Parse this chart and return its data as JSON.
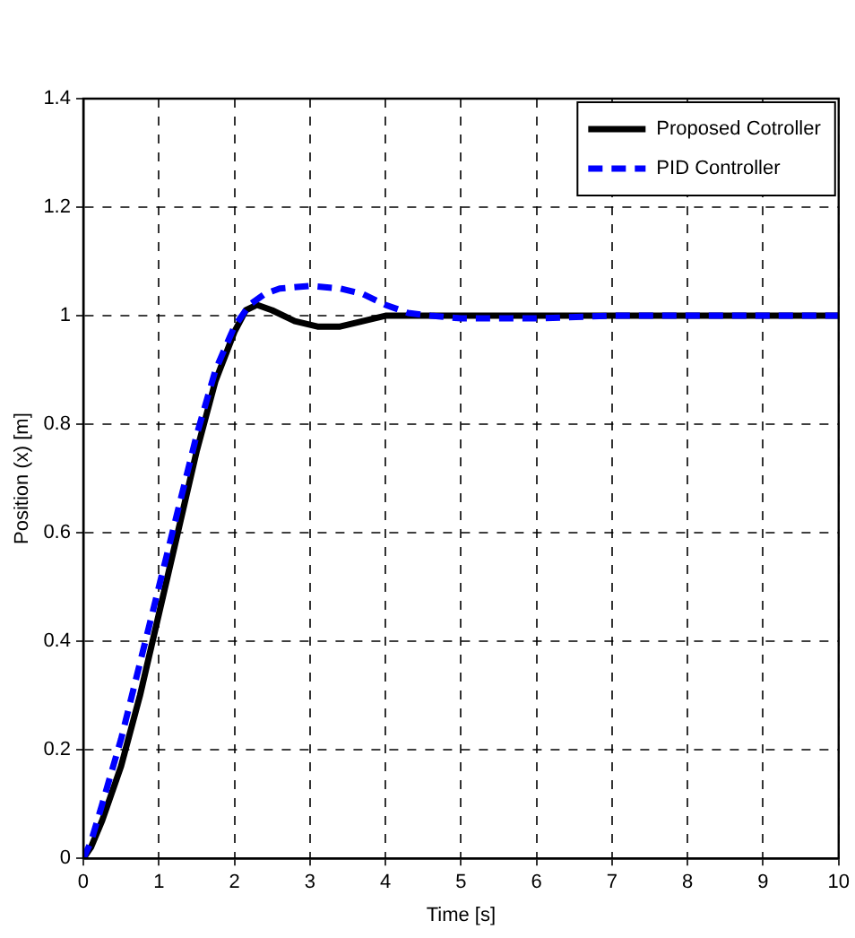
{
  "chart_data": {
    "type": "line",
    "xlabel": "Time [s]",
    "ylabel": "Position (x) [m]",
    "xlim": [
      0,
      10
    ],
    "ylim": [
      0,
      1.4
    ],
    "xticks": [
      0,
      1,
      2,
      3,
      4,
      5,
      6,
      7,
      8,
      9,
      10
    ],
    "yticks": [
      0,
      0.2,
      0.4,
      0.6,
      0.8,
      1,
      1.2,
      1.4
    ],
    "grid": true,
    "legend": "top right",
    "series": [
      {
        "name": "Proposed Cotroller",
        "color": "#000000",
        "line_style": "solid",
        "x": [
          0,
          0.1,
          0.25,
          0.5,
          0.75,
          1,
          1.25,
          1.5,
          1.75,
          2,
          2.15,
          2.3,
          2.5,
          2.8,
          3.1,
          3.4,
          3.7,
          4,
          4.5,
          5,
          6,
          7,
          8,
          9,
          10
        ],
        "values": [
          0,
          0.02,
          0.07,
          0.17,
          0.3,
          0.45,
          0.6,
          0.75,
          0.88,
          0.97,
          1.01,
          1.02,
          1.01,
          0.99,
          0.98,
          0.98,
          0.99,
          1,
          1,
          1,
          1,
          1,
          1,
          1,
          1
        ]
      },
      {
        "name": "PID Controller",
        "color": "#0000ff",
        "line_style": "dashed",
        "x": [
          0,
          0.1,
          0.25,
          0.5,
          0.75,
          1,
          1.25,
          1.5,
          1.75,
          2,
          2.2,
          2.4,
          2.6,
          3,
          3.4,
          3.7,
          4,
          4.3,
          4.6,
          5,
          5.5,
          6,
          7,
          8,
          9,
          10
        ],
        "values": [
          0,
          0.03,
          0.1,
          0.22,
          0.36,
          0.5,
          0.64,
          0.78,
          0.9,
          0.98,
          1.02,
          1.04,
          1.05,
          1.055,
          1.05,
          1.04,
          1.02,
          1.005,
          1,
          0.995,
          0.995,
          0.995,
          1,
          1,
          1,
          1
        ]
      }
    ]
  }
}
